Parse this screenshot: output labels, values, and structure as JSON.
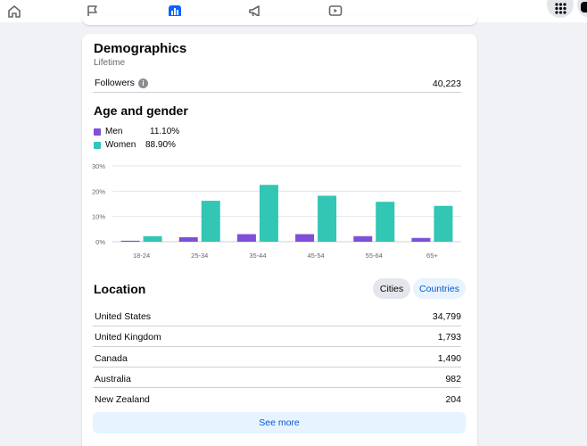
{
  "nav": {
    "tabs": [
      {
        "icon": "home-icon"
      },
      {
        "icon": "flag-icon"
      },
      {
        "icon": "insights-icon",
        "active": true
      },
      {
        "icon": "megaphone-icon"
      },
      {
        "icon": "video-icon"
      }
    ],
    "menu_icon": "grid-menu-icon",
    "accent_color": "#0866ff"
  },
  "demographics": {
    "title": "Demographics",
    "subtitle": "Lifetime",
    "followers_label": "Followers",
    "followers_value": "40,223"
  },
  "age_gender": {
    "title": "Age and gender",
    "legend": [
      {
        "label": "Men",
        "percent": "11.10%",
        "color": "#7f4fd9"
      },
      {
        "label": "Women",
        "percent": "88.90%",
        "color": "#32c6b4"
      }
    ]
  },
  "chart_data": {
    "type": "bar",
    "categories": [
      "18-24",
      "25-34",
      "35-44",
      "45-54",
      "55-64",
      "65+"
    ],
    "series": [
      {
        "name": "Men",
        "color": "#7f4fd9",
        "values": [
          0.4,
          1.8,
          3.0,
          3.0,
          2.2,
          1.5
        ]
      },
      {
        "name": "Women",
        "color": "#32c6b4",
        "values": [
          2.2,
          16.2,
          22.5,
          18.2,
          15.8,
          14.2
        ]
      }
    ],
    "y_ticks": [
      "0%",
      "10%",
      "20%",
      "30%"
    ],
    "ylim": [
      0,
      30
    ],
    "grid": true
  },
  "location": {
    "title": "Location",
    "tabs": [
      {
        "label": "Cities",
        "selected": true
      },
      {
        "label": "Countries",
        "selected": false
      }
    ],
    "rows": [
      {
        "name": "United States",
        "value": "34,799"
      },
      {
        "name": "United Kingdom",
        "value": "1,793"
      },
      {
        "name": "Canada",
        "value": "1,490"
      },
      {
        "name": "Australia",
        "value": "982"
      },
      {
        "name": "New Zealand",
        "value": "204"
      }
    ],
    "see_more": "See more"
  }
}
